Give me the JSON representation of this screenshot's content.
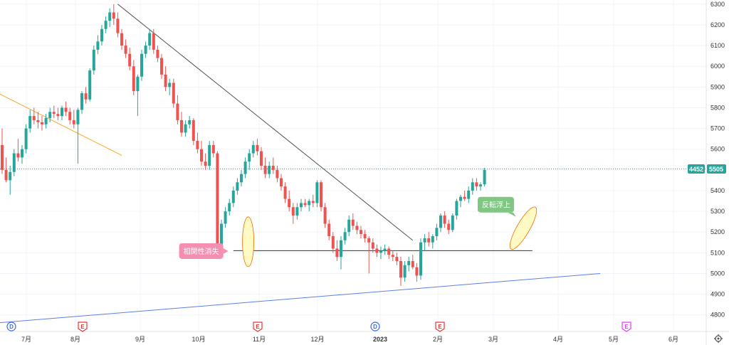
{
  "chart_data": {
    "type": "candlestick",
    "y_axis": {
      "min": 4720,
      "max": 6320,
      "ticks": [
        6300,
        6200,
        6100,
        6000,
        5900,
        5800,
        5700,
        5600,
        5500,
        5400,
        5300,
        5200,
        5100,
        5000,
        4900,
        4800
      ],
      "tick_labels": [
        "6300",
        "6200",
        "6100",
        "6000",
        "5900",
        "5800",
        "5700",
        "5600",
        "5500",
        "5400",
        "5300",
        "5200",
        "5100",
        "5000",
        "4900",
        "4800"
      ]
    },
    "x_axis": {
      "labels": [
        "7月",
        "8月",
        "9月",
        "10月",
        "11月",
        "12月",
        "2023",
        "2月",
        "3月",
        "4月",
        "5月",
        "6月"
      ],
      "bold_label": "2023"
    },
    "current_price": {
      "value": 5505,
      "label": "5505",
      "secondary_label": "4452"
    },
    "candles_up_color": "#26a69a",
    "candles_down_color": "#ef5350",
    "candles": [
      [
        5620,
        5700,
        5480,
        5500
      ],
      [
        5500,
        5560,
        5440,
        5450
      ],
      [
        5450,
        5520,
        5380,
        5490
      ],
      [
        5490,
        5600,
        5470,
        5580
      ],
      [
        5580,
        5650,
        5540,
        5560
      ],
      [
        5560,
        5620,
        5530,
        5600
      ],
      [
        5600,
        5720,
        5580,
        5700
      ],
      [
        5700,
        5790,
        5680,
        5760
      ],
      [
        5760,
        5800,
        5720,
        5740
      ],
      [
        5740,
        5780,
        5700,
        5730
      ],
      [
        5730,
        5760,
        5690,
        5720
      ],
      [
        5720,
        5770,
        5700,
        5750
      ],
      [
        5750,
        5800,
        5730,
        5780
      ],
      [
        5780,
        5810,
        5750,
        5770
      ],
      [
        5770,
        5800,
        5740,
        5760
      ],
      [
        5760,
        5810,
        5740,
        5800
      ],
      [
        5800,
        5830,
        5760,
        5780
      ],
      [
        5780,
        5800,
        5720,
        5740
      ],
      [
        5740,
        5790,
        5700,
        5720
      ],
      [
        5720,
        5800,
        5530,
        5790
      ],
      [
        5790,
        5880,
        5770,
        5870
      ],
      [
        5870,
        5900,
        5820,
        5840
      ],
      [
        5840,
        5990,
        5830,
        5980
      ],
      [
        5980,
        6100,
        5960,
        6080
      ],
      [
        6080,
        6150,
        6060,
        6120
      ],
      [
        6120,
        6200,
        6100,
        6180
      ],
      [
        6180,
        6240,
        6160,
        6220
      ],
      [
        6220,
        6280,
        6190,
        6260
      ],
      [
        6260,
        6300,
        6200,
        6230
      ],
      [
        6230,
        6260,
        6140,
        6160
      ],
      [
        6160,
        6180,
        6080,
        6100
      ],
      [
        6100,
        6130,
        6040,
        6060
      ],
      [
        6060,
        6090,
        5980,
        6000
      ],
      [
        6000,
        6030,
        5860,
        5880
      ],
      [
        5880,
        5960,
        5760,
        5950
      ],
      [
        5950,
        6080,
        5930,
        6060
      ],
      [
        6060,
        6120,
        6040,
        6100
      ],
      [
        6100,
        6180,
        6080,
        6160
      ],
      [
        6160,
        6180,
        6060,
        6080
      ],
      [
        6080,
        6100,
        6020,
        6040
      ],
      [
        6040,
        6060,
        5940,
        5960
      ],
      [
        5960,
        6000,
        5880,
        5900
      ],
      [
        5900,
        5940,
        5860,
        5920
      ],
      [
        5920,
        5940,
        5800,
        5820
      ],
      [
        5820,
        5860,
        5720,
        5740
      ],
      [
        5740,
        5780,
        5660,
        5680
      ],
      [
        5680,
        5740,
        5660,
        5720
      ],
      [
        5720,
        5760,
        5700,
        5740
      ],
      [
        5740,
        5750,
        5620,
        5640
      ],
      [
        5640,
        5680,
        5580,
        5600
      ],
      [
        5600,
        5640,
        5520,
        5540
      ],
      [
        5540,
        5580,
        5500,
        5520
      ],
      [
        5520,
        5640,
        5500,
        5620
      ],
      [
        5620,
        5640,
        5560,
        5580
      ],
      [
        5580,
        5590,
        5100,
        5140
      ],
      [
        5140,
        5260,
        5120,
        5240
      ],
      [
        5240,
        5320,
        5220,
        5300
      ],
      [
        5300,
        5360,
        5280,
        5340
      ],
      [
        5340,
        5420,
        5320,
        5400
      ],
      [
        5400,
        5460,
        5380,
        5440
      ],
      [
        5440,
        5500,
        5420,
        5480
      ],
      [
        5480,
        5560,
        5460,
        5540
      ],
      [
        5540,
        5600,
        5500,
        5580
      ],
      [
        5580,
        5640,
        5560,
        5620
      ],
      [
        5620,
        5650,
        5570,
        5590
      ],
      [
        5590,
        5610,
        5500,
        5520
      ],
      [
        5520,
        5560,
        5460,
        5480
      ],
      [
        5480,
        5540,
        5460,
        5520
      ],
      [
        5520,
        5560,
        5480,
        5500
      ],
      [
        5500,
        5520,
        5440,
        5460
      ],
      [
        5460,
        5480,
        5400,
        5420
      ],
      [
        5420,
        5440,
        5340,
        5360
      ],
      [
        5360,
        5400,
        5300,
        5320
      ],
      [
        5320,
        5340,
        5240,
        5280
      ],
      [
        5280,
        5340,
        5260,
        5320
      ],
      [
        5320,
        5360,
        5300,
        5340
      ],
      [
        5340,
        5360,
        5320,
        5330
      ],
      [
        5330,
        5360,
        5300,
        5350
      ],
      [
        5350,
        5380,
        5320,
        5340
      ],
      [
        5340,
        5450,
        5320,
        5440
      ],
      [
        5440,
        5450,
        5300,
        5320
      ],
      [
        5320,
        5340,
        5220,
        5240
      ],
      [
        5240,
        5260,
        5160,
        5180
      ],
      [
        5180,
        5200,
        5100,
        5120
      ],
      [
        5120,
        5160,
        5060,
        5080
      ],
      [
        5080,
        5180,
        5020,
        5160
      ],
      [
        5160,
        5220,
        5140,
        5200
      ],
      [
        5200,
        5280,
        5180,
        5260
      ],
      [
        5260,
        5290,
        5210,
        5230
      ],
      [
        5230,
        5250,
        5190,
        5210
      ],
      [
        5210,
        5230,
        5170,
        5190
      ],
      [
        5190,
        5210,
        5150,
        5170
      ],
      [
        5170,
        5180,
        5000,
        5150
      ],
      [
        5150,
        5170,
        5100,
        5120
      ],
      [
        5120,
        5140,
        5080,
        5100
      ],
      [
        5100,
        5130,
        5070,
        5110
      ],
      [
        5110,
        5140,
        5090,
        5120
      ],
      [
        5120,
        5130,
        5070,
        5090
      ],
      [
        5090,
        5110,
        5060,
        5080
      ],
      [
        5080,
        5100,
        5040,
        5060
      ],
      [
        5060,
        5080,
        4940,
        4980
      ],
      [
        4980,
        5060,
        4960,
        5040
      ],
      [
        5040,
        5080,
        5010,
        5060
      ],
      [
        5060,
        5090,
        5020,
        5030
      ],
      [
        5030,
        5050,
        4960,
        4990
      ],
      [
        4990,
        5170,
        4970,
        5150
      ],
      [
        5150,
        5190,
        5110,
        5170
      ],
      [
        5170,
        5200,
        5130,
        5150
      ],
      [
        5150,
        5190,
        5120,
        5180
      ],
      [
        5180,
        5240,
        5160,
        5220
      ],
      [
        5220,
        5290,
        5200,
        5280
      ],
      [
        5280,
        5300,
        5220,
        5240
      ],
      [
        5240,
        5260,
        5190,
        5210
      ],
      [
        5210,
        5290,
        5200,
        5280
      ],
      [
        5280,
        5360,
        5260,
        5350
      ],
      [
        5350,
        5380,
        5320,
        5370
      ],
      [
        5370,
        5400,
        5350,
        5360
      ],
      [
        5360,
        5420,
        5340,
        5400
      ],
      [
        5400,
        5460,
        5380,
        5440
      ],
      [
        5440,
        5460,
        5400,
        5420
      ],
      [
        5420,
        5440,
        5400,
        5430
      ],
      [
        5430,
        5510,
        5420,
        5500
      ]
    ],
    "trendlines": [
      {
        "name": "orange-trendline",
        "color": "#ffa726",
        "points": [
          [
            -2,
            5880
          ],
          [
            30,
            5570
          ]
        ]
      },
      {
        "name": "downtrend-line",
        "color": "#555555",
        "points": [
          [
            29,
            6300
          ],
          [
            103,
            5160
          ]
        ]
      },
      {
        "name": "horizontal-support-line",
        "color": "#333333",
        "points": [
          [
            58,
            5110
          ],
          [
            133,
            5110
          ]
        ]
      },
      {
        "name": "blue-uptrend-line",
        "color": "#5b7fe8",
        "points": [
          [
            -2,
            4760
          ],
          [
            150,
            5000
          ]
        ]
      }
    ],
    "annotations": [
      {
        "text": "相関性消失",
        "color": "#f48fb1",
        "anchor": [
          61,
          5170
        ]
      },
      {
        "text": "反転浮上",
        "color": "#81c784",
        "anchor": [
          130,
          5260
        ]
      }
    ],
    "event_badges": [
      {
        "label": "D",
        "color": "#3f6ad8"
      },
      {
        "label": "E",
        "color": "#e53935"
      },
      {
        "label": "E",
        "color": "#e53935"
      },
      {
        "label": "D",
        "color": "#3f6ad8"
      },
      {
        "label": "E",
        "color": "#e53935"
      },
      {
        "label": "E",
        "color": "#e040fb"
      }
    ]
  }
}
